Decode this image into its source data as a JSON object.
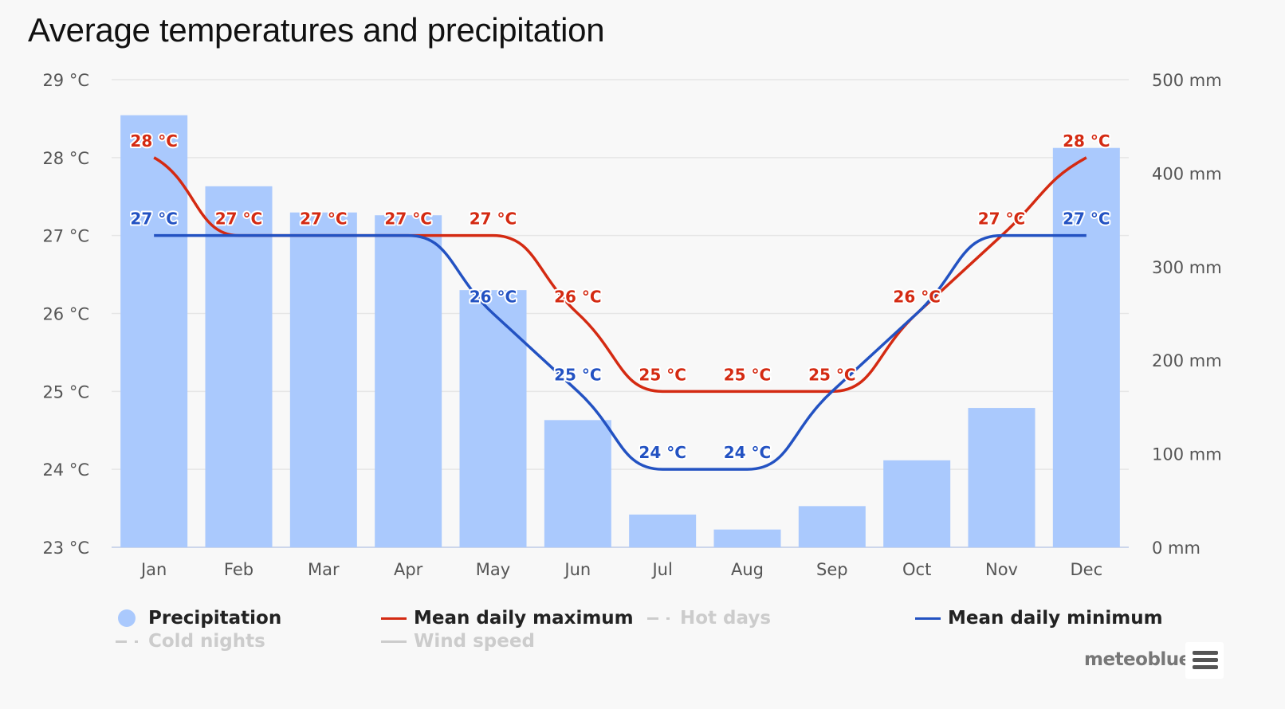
{
  "title": "Average temperatures and precipitation",
  "credits": "meteoblue",
  "menu_icon": "hamburger-menu-icon",
  "colors": {
    "precipitation": "#aac9fd",
    "max": "#d42a12",
    "min": "#2352c2",
    "hot": "#cccccc",
    "grid": "#e6e6e6"
  },
  "legend": [
    {
      "name": "Precipitation",
      "key": "precip",
      "symbol": "circle",
      "visible": true
    },
    {
      "name": "Mean daily maximum",
      "key": "max",
      "symbol": "line",
      "visible": true
    },
    {
      "name": "Hot days",
      "key": "hot",
      "symbol": "dash-dot",
      "visible": false
    },
    {
      "name": "Mean daily minimum",
      "key": "min",
      "symbol": "line",
      "visible": true
    },
    {
      "name": "Cold nights",
      "key": "cold",
      "symbol": "dash-dot",
      "visible": false
    },
    {
      "name": "Wind speed",
      "key": "wind",
      "symbol": "line",
      "visible": false
    }
  ],
  "chart_data": {
    "type": "bar",
    "title": "Average temperatures and precipitation",
    "categories": [
      "Jan",
      "Feb",
      "Mar",
      "Apr",
      "May",
      "Jun",
      "Jul",
      "Aug",
      "Sep",
      "Oct",
      "Nov",
      "Dec"
    ],
    "y_left": {
      "ticks": [
        "23 °C",
        "24 °C",
        "25 °C",
        "26 °C",
        "27 °C",
        "28 °C",
        "29 °C"
      ],
      "range": [
        23,
        29
      ],
      "unit": "°C"
    },
    "y_right": {
      "ticks": [
        "0 mm",
        "100 mm",
        "200 mm",
        "300 mm",
        "400 mm",
        "500 mm"
      ],
      "range": [
        0,
        500
      ],
      "unit": "mm"
    },
    "series": [
      {
        "name": "Precipitation",
        "type": "bar",
        "axis": "right",
        "values": [
          462,
          386,
          358,
          355,
          275,
          136,
          35,
          19,
          44,
          93,
          149,
          427
        ]
      },
      {
        "name": "Mean daily maximum",
        "type": "line",
        "axis": "left",
        "values": [
          28,
          27,
          27,
          27,
          27,
          26,
          25,
          25,
          25,
          26,
          27,
          28
        ],
        "labels": [
          "28 °C",
          "27 °C",
          "27 °C",
          "27 °C",
          "27 °C",
          "26 °C",
          "25 °C",
          "25 °C",
          "25 °C",
          "26 °C",
          "27 °C",
          "28 °C"
        ]
      },
      {
        "name": "Mean daily minimum",
        "type": "line",
        "axis": "left",
        "values": [
          27,
          27,
          27,
          27,
          26,
          25,
          24,
          24,
          25,
          26,
          27,
          27
        ],
        "labels": [
          "27 °C",
          "",
          "",
          "",
          "26 °C",
          "25 °C",
          "24 °C",
          "24 °C",
          "",
          "",
          "",
          "27 °C"
        ]
      }
    ],
    "grid": true,
    "legend_position": "bottom"
  }
}
